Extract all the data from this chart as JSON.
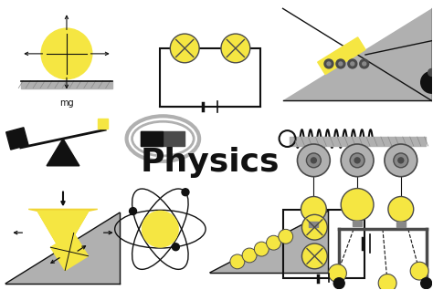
{
  "title": "Physics",
  "bg_color": "#ffffff",
  "yellow": "#f5e642",
  "yellow2": "#f0d535",
  "dark_gray": "#4a4a4a",
  "light_gray": "#b0b0b0",
  "mid_gray": "#888888",
  "black": "#111111",
  "figsize": [
    4.74,
    3.18
  ],
  "dpi": 100
}
